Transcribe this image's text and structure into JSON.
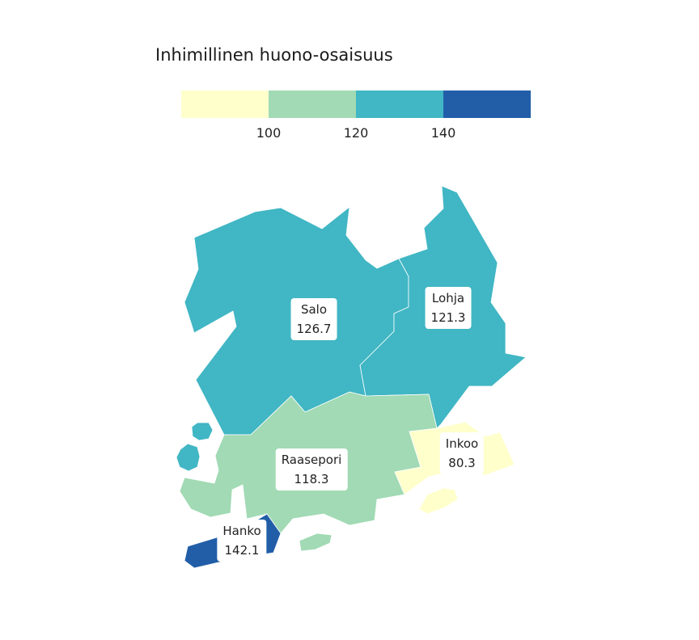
{
  "title": "Inhimillinen huono-osaisuus",
  "legend": {
    "colors": [
      "#ffffcc",
      "#a1dab4",
      "#41b6c4",
      "#225ea8"
    ],
    "ticks": [
      "100",
      "120",
      "140"
    ]
  },
  "regions": {
    "salo": {
      "name": "Salo",
      "value": "126.7",
      "color": "#41b6c4"
    },
    "lohja": {
      "name": "Lohja",
      "value": "121.3",
      "color": "#41b6c4"
    },
    "raasepori": {
      "name": "Raasepori",
      "value": "118.3",
      "color": "#a1dab4"
    },
    "inkoo": {
      "name": "Inkoo",
      "value": "80.3",
      "color": "#ffffcc"
    },
    "hanko": {
      "name": "Hanko",
      "value": "142.1",
      "color": "#225ea8"
    }
  }
}
